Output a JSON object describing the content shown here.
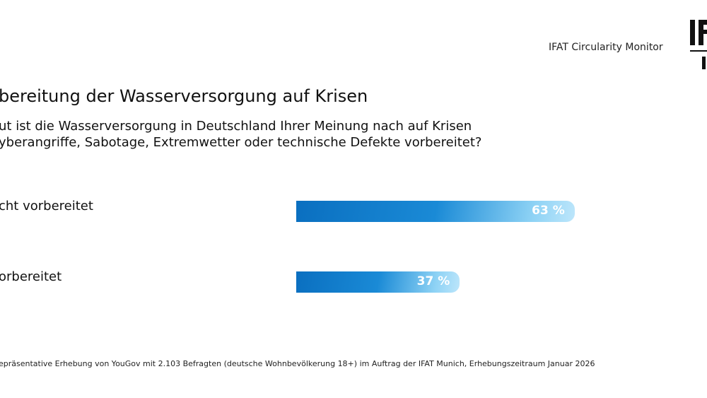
{
  "header": {
    "monitor": "IFAT Circularity Monitor",
    "logo_text": "IFAT",
    "logo_sub": "M"
  },
  "chart_data": {
    "type": "bar",
    "title": "bereitung der Wasserversorgung auf Krisen",
    "question": [
      "ut ist die Wasserversorgung in Deutschland Ihrer Meinung nach auf Krisen",
      "yberangriffe, Sabotage, Extremwetter oder technische Defekte vorbereitet?"
    ],
    "categories": [
      "cht vorbereitet",
      "orbereitet"
    ],
    "values": [
      63,
      37
    ],
    "value_labels": [
      "63 %",
      "37 %"
    ],
    "xlim": [
      0,
      100
    ],
    "colors": {
      "bar_start": "#0a6fc0",
      "bar_end": "#bde6fb"
    }
  },
  "footer": {
    "note": "epräsentative Erhebung von YouGov mit 2.103 Befragten (deutsche Wohnbevölkerung 18+) im Auftrag der IFAT Munich, Erhebungszeitraum Januar 2026"
  }
}
